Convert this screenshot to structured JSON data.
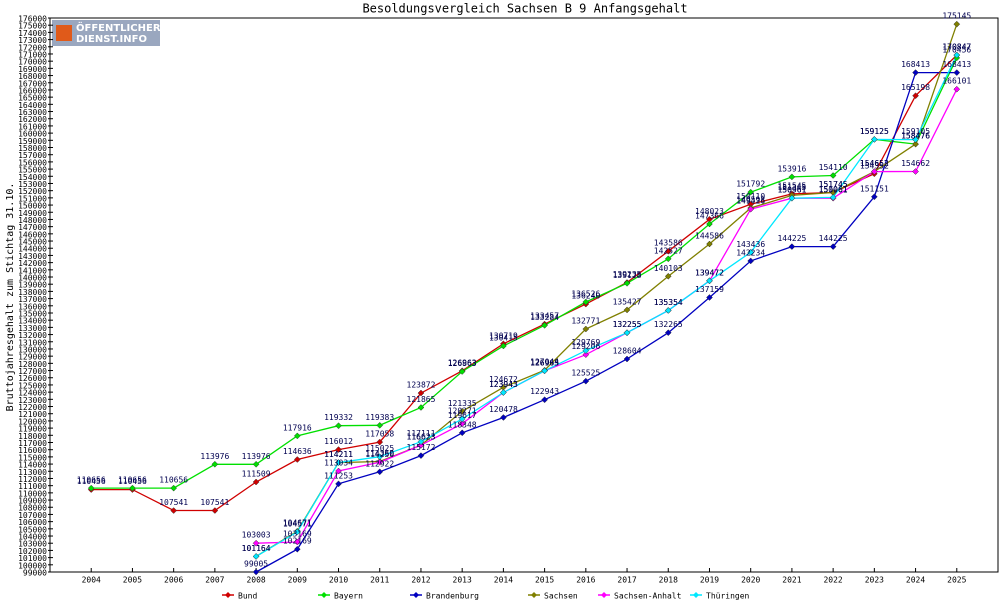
{
  "chart_data": {
    "type": "line",
    "title": "Besoldungsvergleich Sachsen B 9 Anfangsgehalt",
    "y_label": "Bruttojahresgehalt zum Stichtag 31.10.",
    "logo": [
      "ÖFFENTLICHER",
      "DIENST.INFO"
    ],
    "categories": [
      "2004",
      "2005",
      "2006",
      "2007",
      "2008",
      "2009",
      "2010",
      "2011",
      "2012",
      "2013",
      "2014",
      "2015",
      "2016",
      "2017",
      "2018",
      "2019",
      "2020",
      "2021",
      "2022",
      "2023",
      "2024",
      "2025"
    ],
    "series": [
      {
        "name": "Bund",
        "color": "#d00000",
        "values": [
          110456,
          110456,
          107541,
          107541,
          111509,
          114636,
          116012,
          117058,
          123872,
          126963,
          130719,
          133457,
          136240,
          139235,
          143586,
          148023,
          150110,
          151545,
          151745,
          154352,
          165198,
          170847
        ]
      },
      {
        "name": "Bayern",
        "color": "#00e000",
        "values": [
          110656,
          110656,
          110656,
          113976,
          113976,
          117916,
          119332,
          119383,
          121865,
          126863,
          130415,
          133284,
          136526,
          139128,
          142527,
          147366,
          151792,
          153916,
          154110,
          159125,
          158476,
          170456
        ]
      },
      {
        "name": "Brandenburg",
        "color": "#0000c0",
        "values": [
          null,
          null,
          null,
          null,
          99005,
          102169,
          111253,
          112922,
          115172,
          118348,
          120478,
          122943,
          125525,
          128604,
          132265,
          137159,
          142234,
          144225,
          144225,
          151151,
          168413,
          168413
        ]
      },
      {
        "name": "Sachsen",
        "color": "#808000",
        "values": [
          null,
          null,
          null,
          null,
          101164,
          104671,
          114211,
          114360,
          116623,
          121335,
          124672,
          127044,
          132771,
          135427,
          140103,
          144586,
          149593,
          151345,
          151745,
          154652,
          158476,
          175145
        ]
      },
      {
        "name": "Sachsen-Anhalt",
        "color": "#ff00ff",
        "values": [
          null,
          null,
          null,
          null,
          103003,
          103169,
          113034,
          114250,
          116623,
          119617,
          123943,
          126965,
          129206,
          132255,
          135354,
          139472,
          149426,
          150961,
          150961,
          154652,
          154662,
          166101
        ]
      },
      {
        "name": "Thüringen",
        "color": "#00e8ff",
        "values": [
          null,
          null,
          null,
          null,
          101164,
          104571,
          114211,
          115025,
          117111,
          120271,
          123943,
          126963,
          129769,
          132255,
          135354,
          139472,
          143436,
          150961,
          151061,
          159125,
          159105,
          170847
        ]
      }
    ],
    "ylim": [
      99000,
      176000
    ],
    "yticks": [
      99000,
      100000,
      101000,
      102000,
      103000,
      104000,
      105000,
      106000,
      107000,
      108000,
      109000,
      110000,
      111000,
      112000,
      113000,
      114000,
      115000,
      116000,
      117000,
      118000,
      119000,
      120000,
      121000,
      122000,
      123000,
      124000,
      125000,
      126000,
      127000,
      128000,
      129000,
      130000,
      131000,
      132000,
      133000,
      134000,
      135000,
      136000,
      137000,
      138000,
      139000,
      140000,
      141000,
      142000,
      143000,
      144000,
      145000,
      146000,
      147000,
      148000,
      149000,
      150000,
      151000,
      152000,
      153000,
      154000,
      155000,
      156000,
      157000,
      158000,
      159000,
      160000,
      161000,
      162000,
      163000,
      164000,
      165000,
      166000,
      167000,
      168000,
      169000,
      170000,
      171000,
      172000,
      173000,
      174000,
      175000,
      176000
    ],
    "grid": false
  }
}
